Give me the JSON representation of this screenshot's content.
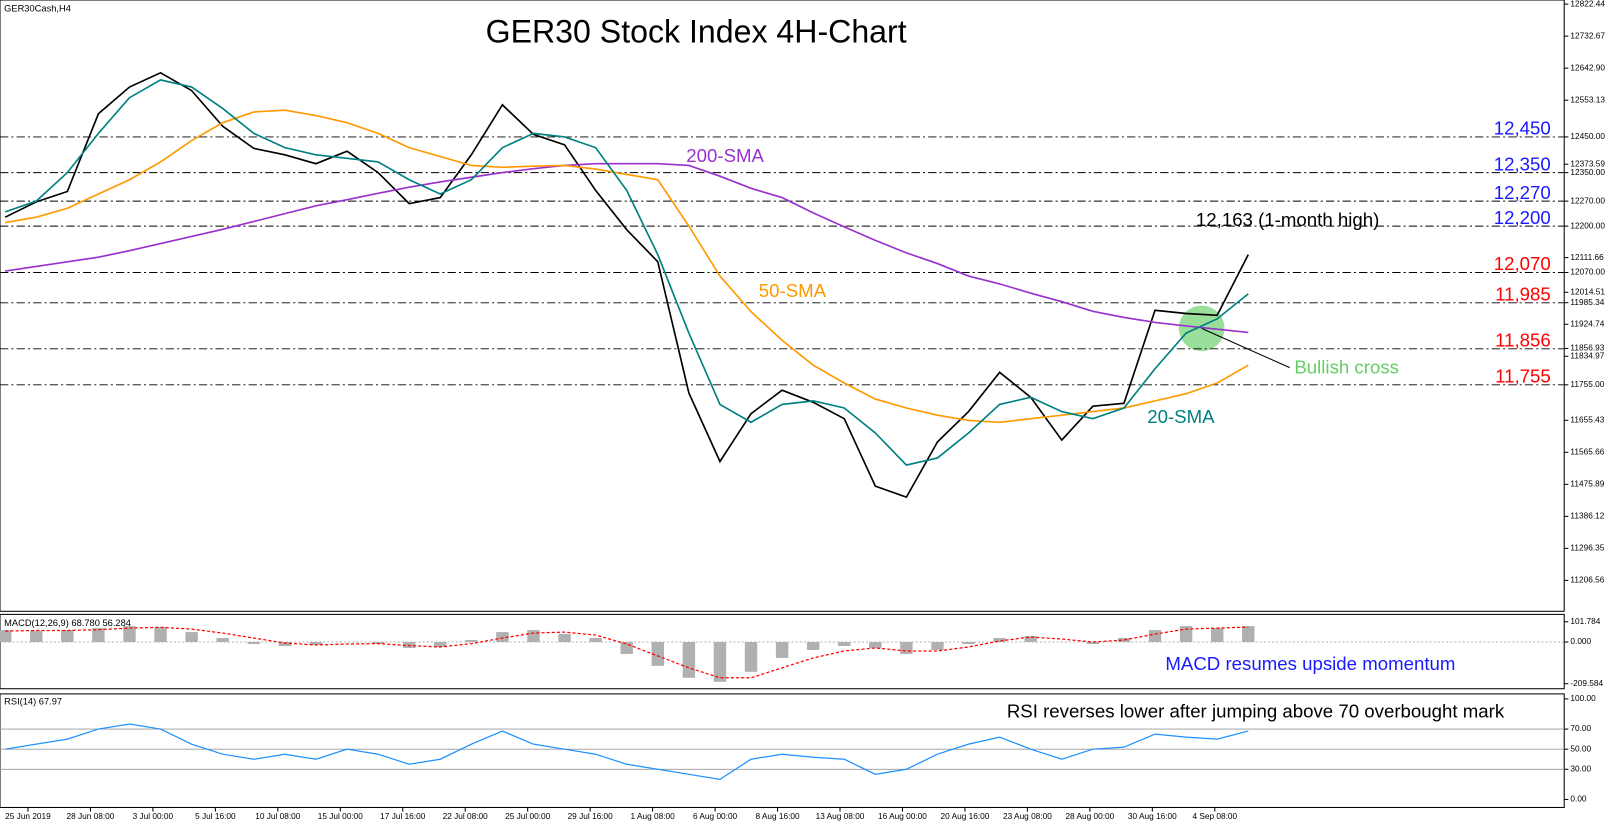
{
  "chart_data": [
    {
      "type": "line",
      "title": "GER30 Stock Index 4H-Chart",
      "symbol": "GER30Cash,H4",
      "ylim": [
        11120,
        12834
      ],
      "yticks": [
        12822.44,
        12732.67,
        {
          "value": 12642.9,
          "label": "12642.90"
        },
        12553.13,
        {
          "value": 12450,
          "label": "12450.00"
        },
        12373.59,
        {
          "value": 12350,
          "label": "12350.00"
        },
        {
          "value": 12270,
          "label": "12270.00"
        },
        {
          "value": 12200,
          "label": "12200.00"
        },
        12111.66,
        {
          "value": 12070,
          "label": "12070.00"
        },
        12014.51,
        11985.34,
        11924.74,
        11856.93,
        11834.97,
        {
          "value": 11755,
          "label": "11755.00"
        },
        11655.43,
        11565.66,
        11475.89,
        11386.12,
        11296.35,
        11206.56
      ],
      "levels": [
        {
          "value": 12450,
          "label": "12,450",
          "color": "#1a1aff"
        },
        {
          "value": 12350,
          "label": "12,350",
          "color": "#1a1aff"
        },
        {
          "value": 12270,
          "label": "12,270",
          "color": "#1a1aff"
        },
        {
          "value": 12200,
          "label": "12,200",
          "color": "#1a1aff"
        },
        {
          "value": 12070,
          "label": "12,070",
          "color": "#ff0000"
        },
        {
          "value": 11985,
          "label": "11,985",
          "color": "#ff0000"
        },
        {
          "value": 11856,
          "label": "11,856",
          "color": "#ff0000"
        },
        {
          "value": 11755,
          "label": "11,755",
          "color": "#ff0000"
        }
      ],
      "series": [
        {
          "color": "#000000",
          "values": [
            12225,
            12268,
            12297,
            12515,
            12590,
            12630,
            12580,
            12480,
            12418,
            12400,
            12375,
            12410,
            12350,
            12263,
            12280,
            12400,
            12540,
            12457,
            12428,
            12300,
            12190,
            12100,
            11732,
            11540,
            11674,
            11740,
            11706,
            11660,
            11471,
            11440,
            11595,
            11680,
            11790,
            11720,
            11600,
            11695,
            11703,
            11964,
            11955,
            11950,
            12120
          ]
        },
        {
          "name": "200-SMA",
          "color": "#9932cc",
          "values": [
            12074,
            12087,
            12100,
            12113,
            12131,
            12151,
            12171,
            12191,
            12213,
            12235,
            12257,
            12274,
            12292,
            12309,
            12324,
            12337,
            12350,
            12361,
            12370,
            12375,
            12375,
            12375,
            12370,
            12340,
            12306,
            12280,
            12237,
            12198,
            12160,
            12125,
            12095,
            12060,
            12038,
            12012,
            11988,
            11961,
            11944,
            11930,
            11920,
            11911,
            11902
          ]
        },
        {
          "name": "50-SMA",
          "color": "#ff9900",
          "values": [
            12210,
            12225,
            12250,
            12290,
            12330,
            12380,
            12440,
            12490,
            12520,
            12525,
            12510,
            12490,
            12460,
            12420,
            12395,
            12370,
            12365,
            12368,
            12370,
            12360,
            12345,
            12330,
            12200,
            12060,
            11960,
            11880,
            11810,
            11760,
            11715,
            11690,
            11670,
            11655,
            11650,
            11660,
            11670,
            11680,
            11690,
            11710,
            11730,
            11760,
            11810
          ]
        },
        {
          "name": "20-SMA",
          "color": "#008080",
          "values": [
            12240,
            12270,
            12350,
            12460,
            12560,
            12610,
            12590,
            12530,
            12460,
            12420,
            12400,
            12390,
            12380,
            12330,
            12290,
            12330,
            12420,
            12460,
            12450,
            12420,
            12300,
            12120,
            11900,
            11700,
            11650,
            11700,
            11710,
            11690,
            11620,
            11530,
            11550,
            11620,
            11700,
            11720,
            11680,
            11660,
            11690,
            11800,
            11900,
            11940,
            12010
          ]
        }
      ],
      "annotations": [
        {
          "text": "12,163 (1-month high)",
          "color": "#000000"
        },
        {
          "text": "Bullish cross",
          "color": "#66cc66"
        }
      ]
    },
    {
      "type": "bar",
      "label": "MACD(12,26,9) 68.780 56.284",
      "ylim": [
        -235,
        139
      ],
      "yticks": [
        101.784,
        {
          "value": 0,
          "label": "0.000"
        },
        -209.584
      ],
      "series": [
        {
          "type": "bar",
          "color": "#b0b0b0",
          "values": [
            60,
            55,
            60,
            70,
            80,
            75,
            50,
            20,
            -10,
            -20,
            -15,
            0,
            -10,
            -30,
            -25,
            10,
            50,
            60,
            40,
            20,
            -60,
            -120,
            -180,
            -200,
            -150,
            -80,
            -40,
            -20,
            -30,
            -60,
            -40,
            -10,
            20,
            30,
            0,
            -10,
            20,
            60,
            80,
            70,
            80
          ]
        },
        {
          "type": "line",
          "color": "#ff0000",
          "values": [
            55,
            58,
            58,
            62,
            70,
            74,
            65,
            45,
            20,
            -5,
            -15,
            -10,
            -8,
            -18,
            -25,
            -8,
            20,
            45,
            50,
            35,
            -10,
            -70,
            -130,
            -180,
            -180,
            -130,
            -80,
            -45,
            -30,
            -45,
            -45,
            -25,
            5,
            25,
            15,
            0,
            10,
            40,
            65,
            70,
            75
          ]
        }
      ],
      "annotations": [
        {
          "text": "MACD resumes upside momentum",
          "color": "#1a1aff"
        }
      ]
    },
    {
      "type": "line",
      "label": "RSI(14) 67.97",
      "ylim": [
        -8,
        105
      ],
      "yticks": [
        {
          "value": 100,
          "label": "100.00"
        },
        {
          "value": 70,
          "label": "70.00"
        },
        {
          "value": 50,
          "label": "50.00"
        },
        {
          "value": 30,
          "label": "30.00"
        },
        {
          "value": 0,
          "label": "0.00"
        }
      ],
      "series": [
        {
          "color": "#1e90ff",
          "values": [
            50,
            55,
            60,
            70,
            75,
            70,
            55,
            45,
            40,
            45,
            40,
            50,
            45,
            35,
            40,
            55,
            68,
            55,
            50,
            45,
            35,
            30,
            25,
            20,
            40,
            45,
            42,
            40,
            25,
            30,
            45,
            55,
            62,
            50,
            40,
            50,
            52,
            65,
            62,
            60,
            68
          ]
        }
      ],
      "annotations": [
        {
          "text": "RSI reverses lower after jumping above 70 overbought mark",
          "color": "#000000"
        }
      ],
      "x_labels": [
        "25 Jun 2019",
        "28 Jun 08:00",
        "3 Jul 00:00",
        "5 Jul 16:00",
        "10 Jul 08:00",
        "15 Jul 00:00",
        "17 Jul 16:00",
        "22 Jul 08:00",
        "25 Jul 00:00",
        "29 Jul 16:00",
        "1 Aug 08:00",
        "6 Aug 00:00",
        "8 Aug 16:00",
        "13 Aug 08:00",
        "16 Aug 00:00",
        "20 Aug 16:00",
        "23 Aug 08:00",
        "28 Aug 00:00",
        "30 Aug 16:00",
        "4 Sep 08:00"
      ]
    }
  ]
}
